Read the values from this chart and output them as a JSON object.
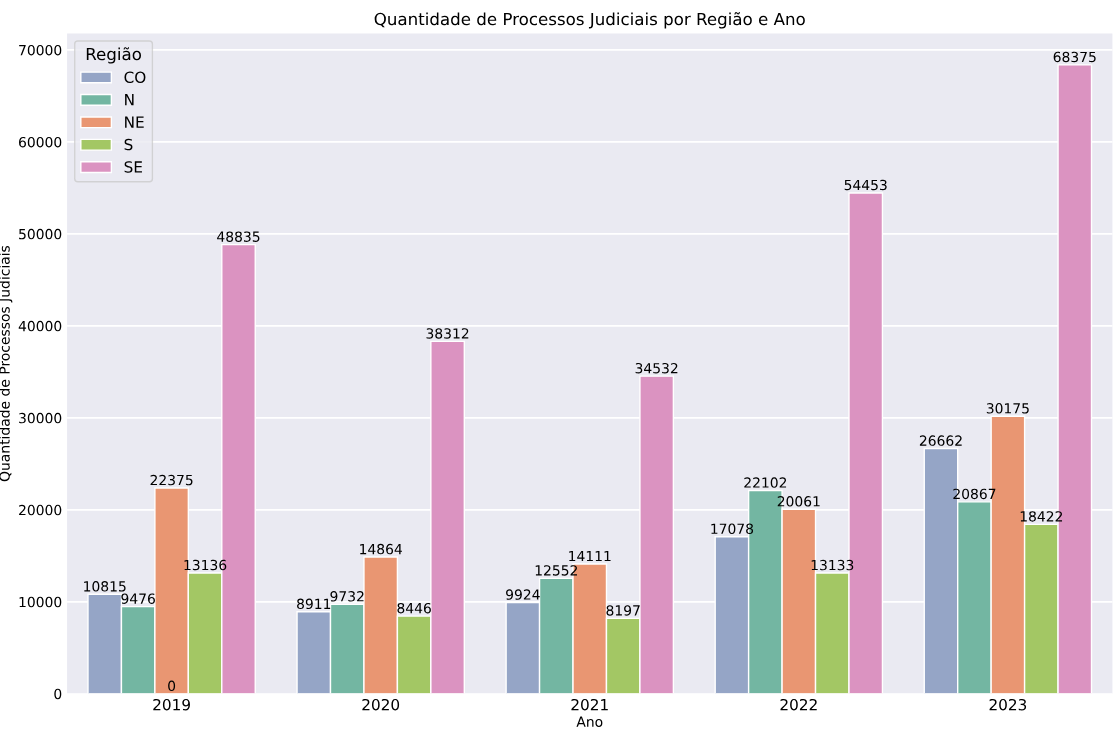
{
  "chart_data": {
    "type": "bar",
    "title": "Quantidade de Processos Judiciais por Região e Ano",
    "xlabel": "Ano",
    "ylabel": "Quantidade de Processos Judiciais",
    "legend_title": "Região",
    "categories": [
      "2019",
      "2020",
      "2021",
      "2022",
      "2023"
    ],
    "series": [
      {
        "name": "CO",
        "color": "#95a5c6",
        "values": [
          10815,
          8911,
          9924,
          17078,
          26662
        ]
      },
      {
        "name": "N",
        "color": "#73b6a2",
        "values": [
          9476,
          9732,
          12552,
          22102,
          20867
        ]
      },
      {
        "name": "NE",
        "color": "#e99672",
        "values": [
          22375,
          14864,
          14111,
          20061,
          30175
        ]
      },
      {
        "name": "S",
        "color": "#a3c764",
        "values": [
          13136,
          8446,
          8197,
          13133,
          18422
        ]
      },
      {
        "name": "SE",
        "color": "#db93c1",
        "values": [
          48835,
          38312,
          34532,
          54453,
          68375
        ]
      }
    ],
    "annotations": [
      {
        "text": "0",
        "x": "2019",
        "y": 0
      }
    ],
    "ylim": [
      0,
      71800
    ],
    "yticks": [
      0,
      10000,
      20000,
      30000,
      40000,
      50000,
      60000,
      70000
    ],
    "data_labels": true,
    "grid": "y",
    "legend": "top left"
  }
}
